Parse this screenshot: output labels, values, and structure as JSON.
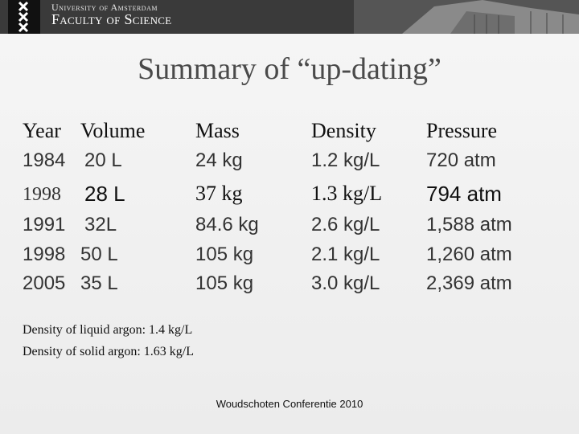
{
  "header": {
    "university": "University of Amsterdam",
    "faculty": "Faculty of Science"
  },
  "title": "Summary of “up-dating”",
  "table": {
    "columns": [
      "Year",
      "Volume",
      "Mass",
      "Density",
      "Pressure"
    ],
    "rows": [
      [
        "1984",
        "20 L",
        "24 kg",
        "1.2 kg/L",
        "720 atm"
      ],
      [
        "1998",
        "28 L",
        "37 kg",
        "1.3 kg/L",
        "794 atm"
      ],
      [
        "1991",
        "32L",
        "84.6 kg",
        "2.6 kg/L",
        "1,588 atm"
      ],
      [
        "1998",
        "50 L",
        "105 kg",
        "2.1 kg/L",
        "1,260 atm"
      ],
      [
        "2005",
        "35 L",
        "105 kg",
        "3.0 kg/L",
        "2,369 atm"
      ]
    ]
  },
  "notes": [
    "Density of liquid argon: 1.4 kg/L",
    "Density of solid argon: 1.63 kg/L"
  ],
  "footer": "Woudschoten Conferentie 2010"
}
